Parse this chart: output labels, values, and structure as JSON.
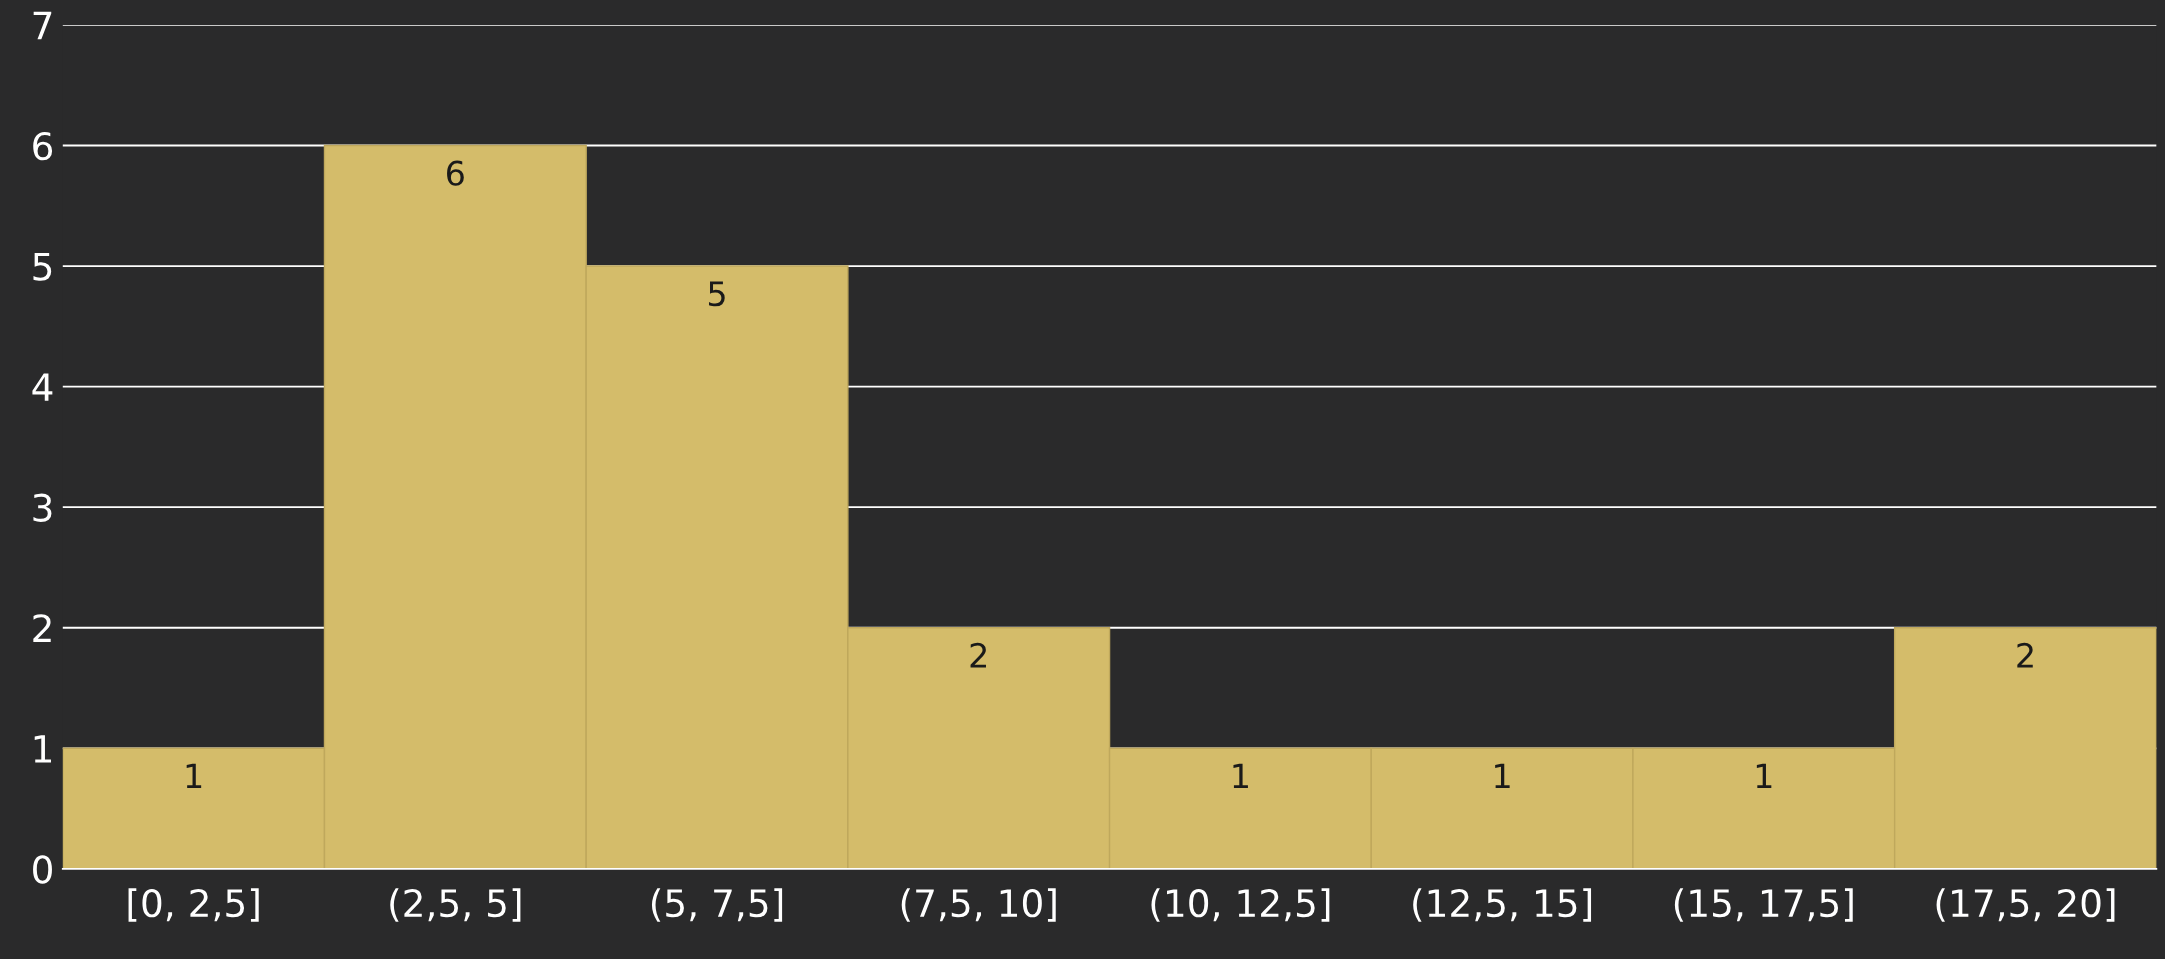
{
  "chart_data": {
    "type": "bar",
    "categories": [
      "[0, 2,5]",
      "(2,5, 5]",
      "(5, 7,5]",
      "(7,5, 10]",
      "(10, 12,5]",
      "(12,5, 15]",
      "(15, 17,5]",
      "(17,5, 20]"
    ],
    "values": [
      1,
      6,
      5,
      2,
      1,
      1,
      1,
      2
    ],
    "color": "#d4bc6a",
    "data_labels": true,
    "ylim": [
      0,
      7
    ],
    "yticks": [
      0,
      1,
      2,
      3,
      4,
      5,
      6,
      7
    ],
    "grid": "y"
  }
}
